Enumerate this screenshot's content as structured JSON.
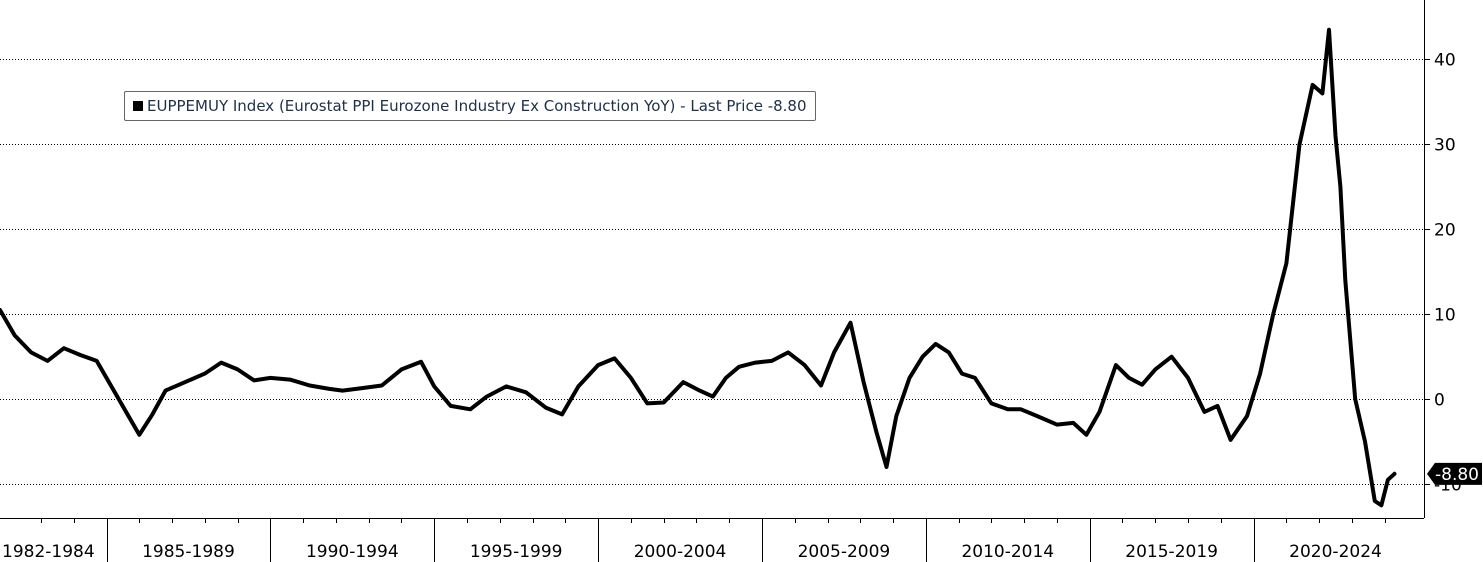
{
  "chart_data": {
    "type": "line",
    "series": [
      {
        "name": "EUPPEMUY Index (Eurostat PPI Eurozone Industry Ex Construction YoY) - Last Price -8.80",
        "x": [
          1981.75,
          1982.2,
          1982.7,
          1983.2,
          1983.7,
          1984.2,
          1984.7,
          1985.3,
          1986.0,
          1986.4,
          1986.8,
          1987.4,
          1988.0,
          1988.5,
          1989.0,
          1989.5,
          1990.0,
          1990.6,
          1991.2,
          1991.8,
          1992.2,
          1992.8,
          1993.4,
          1994.0,
          1994.6,
          1995.0,
          1995.5,
          1996.1,
          1996.6,
          1997.2,
          1997.8,
          1998.4,
          1998.9,
          1999.4,
          2000.0,
          2000.5,
          2001.0,
          2001.5,
          2002.0,
          2002.6,
          2003.1,
          2003.5,
          2003.9,
          2004.3,
          2004.8,
          2005.3,
          2005.8,
          2006.3,
          2006.8,
          2007.2,
          2007.7,
          2008.1,
          2008.5,
          2008.8,
          2009.1,
          2009.5,
          2009.9,
          2010.3,
          2010.7,
          2011.1,
          2011.5,
          2012.0,
          2012.5,
          2012.9,
          2013.4,
          2014.0,
          2014.5,
          2014.9,
          2015.3,
          2015.8,
          2016.2,
          2016.6,
          2017.0,
          2017.5,
          2018.0,
          2018.5,
          2018.9,
          2019.3,
          2019.8,
          2020.2,
          2020.6,
          2021.0,
          2021.4,
          2021.8,
          2022.1,
          2022.3,
          2022.5,
          2022.65,
          2022.8,
          2023.1,
          2023.4,
          2023.7,
          2023.9,
          2024.1,
          2024.3
        ],
        "values": [
          10.5,
          7.5,
          5.5,
          4.5,
          6.0,
          5.2,
          4.5,
          0.5,
          -4.2,
          -1.8,
          1.0,
          2.0,
          3.0,
          4.3,
          3.5,
          2.2,
          2.5,
          2.3,
          1.6,
          1.2,
          1.0,
          1.3,
          1.6,
          3.5,
          4.4,
          1.5,
          -0.8,
          -1.2,
          0.3,
          1.5,
          0.8,
          -1.0,
          -1.8,
          1.5,
          4.0,
          4.8,
          2.5,
          -0.5,
          -0.4,
          2.0,
          1.0,
          0.3,
          2.5,
          3.8,
          4.3,
          4.5,
          5.5,
          4.0,
          1.6,
          5.5,
          9.0,
          2.0,
          -4.0,
          -8.0,
          -2.0,
          2.5,
          5.0,
          6.5,
          5.5,
          3.0,
          2.5,
          -0.5,
          -1.2,
          -1.2,
          -2.0,
          -3.0,
          -2.8,
          -4.2,
          -1.5,
          4.0,
          2.5,
          1.7,
          3.5,
          5.0,
          2.5,
          -1.5,
          -0.8,
          -4.8,
          -2.0,
          3.0,
          10.0,
          16.0,
          30.0,
          37.0,
          36.0,
          43.5,
          31.0,
          25.0,
          14.0,
          0.0,
          -5.0,
          -12.0,
          -12.5,
          -9.5,
          -8.8
        ]
      }
    ],
    "y_ticks": [
      "40",
      "30",
      "20",
      "10",
      "0",
      "-10"
    ],
    "x_labels": [
      "1982-1984",
      "1985-1989",
      "1990-1994",
      "1995-1999",
      "2000-2004",
      "2005-2009",
      "2010-2014",
      "2015-2019",
      "2020-2024"
    ],
    "last_value_label": "-8.80",
    "ylim": [
      -14,
      47
    ],
    "xlim": [
      1981.75,
      2025.2
    ],
    "grid": true,
    "legend_position": "top-left",
    "colors": {
      "line": "#000000",
      "grid": "#000000",
      "last_badge": "#000000"
    }
  }
}
